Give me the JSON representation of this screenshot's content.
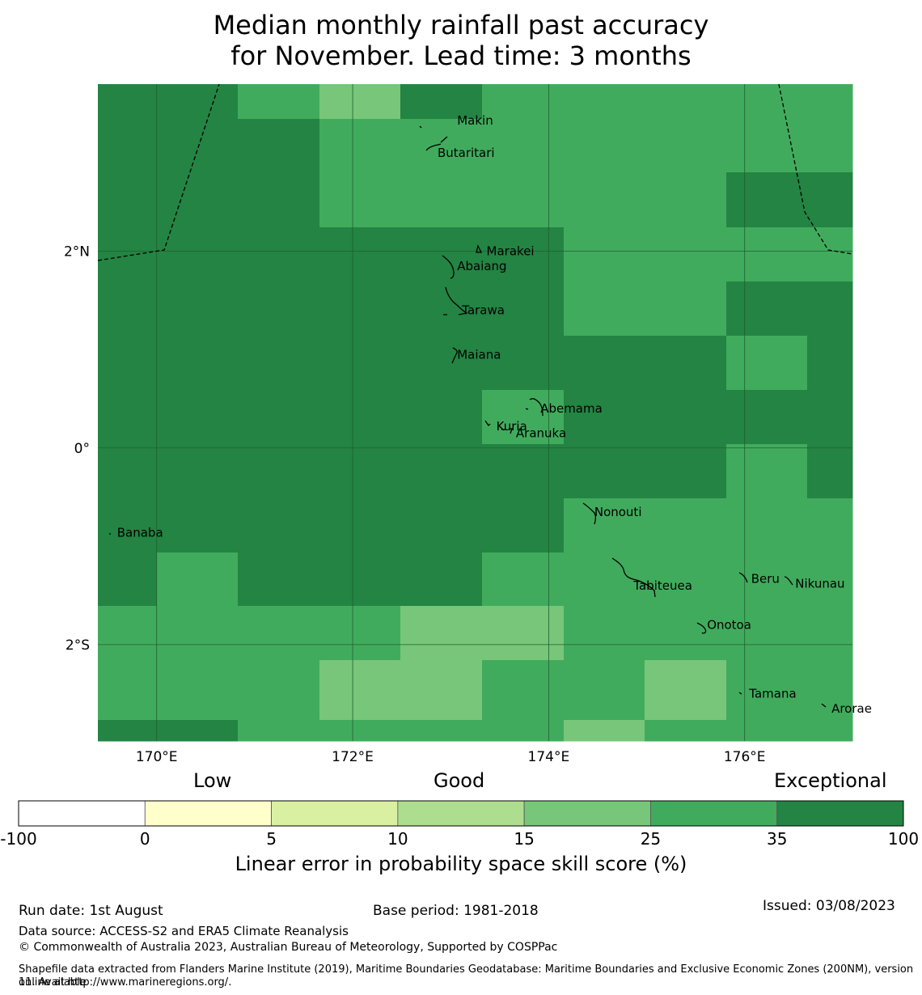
{
  "title_line1": "Median monthly rainfall past accuracy",
  "title_line2": "for November. Lead time: 3 months",
  "map": {
    "lon_range": [
      169.4,
      177.1
    ],
    "lat_range": [
      -2.98,
      3.7
    ],
    "lon_ticks": [
      {
        "value": 170,
        "label": "170°E"
      },
      {
        "value": 172,
        "label": "172°E"
      },
      {
        "value": 174,
        "label": "174°E"
      },
      {
        "value": 176,
        "label": "176°E"
      }
    ],
    "lat_ticks": [
      {
        "value": 2,
        "label": "2°N"
      },
      {
        "value": 0,
        "label": "0°"
      },
      {
        "value": -2,
        "label": "2°S"
      }
    ],
    "grid_lon_edges": [
      169.4,
      170.0,
      170.83,
      171.66,
      172.49,
      173.32,
      174.15,
      174.98,
      175.81,
      176.64,
      177.1
    ],
    "grid_lat_edges": [
      3.7,
      3.35,
      2.8,
      2.24,
      1.69,
      1.14,
      0.59,
      0.04,
      -0.51,
      -1.06,
      -1.61,
      -2.16,
      -2.77,
      -2.98
    ],
    "level_colors": [
      "#ffffff",
      "#ffffcc",
      "#d9f0a3",
      "#addd8e",
      "#78c679",
      "#41ab5d",
      "#238443"
    ],
    "grid_levels": [
      [
        6,
        6,
        5,
        4,
        6,
        5,
        5,
        5,
        5,
        5
      ],
      [
        6,
        6,
        6,
        5,
        5,
        5,
        5,
        5,
        5,
        5
      ],
      [
        6,
        6,
        6,
        5,
        5,
        5,
        5,
        5,
        6,
        6
      ],
      [
        6,
        6,
        6,
        6,
        6,
        6,
        5,
        5,
        5,
        5
      ],
      [
        6,
        6,
        6,
        6,
        6,
        6,
        5,
        5,
        6,
        6
      ],
      [
        6,
        6,
        6,
        6,
        6,
        6,
        6,
        6,
        5,
        6
      ],
      [
        6,
        6,
        6,
        6,
        6,
        5,
        6,
        6,
        6,
        6
      ],
      [
        6,
        6,
        6,
        6,
        6,
        6,
        6,
        6,
        5,
        6
      ],
      [
        6,
        6,
        6,
        6,
        6,
        6,
        5,
        5,
        5,
        5
      ],
      [
        6,
        5,
        6,
        6,
        6,
        5,
        5,
        5,
        5,
        5
      ],
      [
        5,
        5,
        5,
        5,
        4,
        4,
        5,
        5,
        5,
        5
      ],
      [
        5,
        5,
        5,
        4,
        4,
        5,
        5,
        4,
        5,
        5
      ],
      [
        6,
        6,
        5,
        5,
        5,
        5,
        4,
        5,
        5,
        5
      ]
    ],
    "islands": [
      {
        "name": "Makin",
        "lon": 173.0,
        "lat": 3.33
      },
      {
        "name": "Butaritari",
        "lon": 172.8,
        "lat": 3.0
      },
      {
        "name": "Marakei",
        "lon": 173.3,
        "lat": 2.0
      },
      {
        "name": "Abaiang",
        "lon": 173.0,
        "lat": 1.85
      },
      {
        "name": "Tarawa",
        "lon": 173.05,
        "lat": 1.4
      },
      {
        "name": "Maiana",
        "lon": 173.0,
        "lat": 0.95
      },
      {
        "name": "Abemama",
        "lon": 173.85,
        "lat": 0.4
      },
      {
        "name": "Kuria",
        "lon": 173.4,
        "lat": 0.22
      },
      {
        "name": "Aranuka",
        "lon": 173.6,
        "lat": 0.15
      },
      {
        "name": "Nonouti",
        "lon": 174.4,
        "lat": -0.65
      },
      {
        "name": "Banaba",
        "lon": 169.53,
        "lat": -0.86
      },
      {
        "name": "Beru",
        "lon": 176.0,
        "lat": -1.33
      },
      {
        "name": "Tabiteuea",
        "lon": 174.8,
        "lat": -1.4
      },
      {
        "name": "Nikunau",
        "lon": 176.45,
        "lat": -1.38
      },
      {
        "name": "Onotoa",
        "lon": 175.55,
        "lat": -1.8
      },
      {
        "name": "Tamana",
        "lon": 175.98,
        "lat": -2.5
      },
      {
        "name": "Arorae",
        "lon": 176.82,
        "lat": -2.65
      }
    ]
  },
  "colorbar": {
    "categories": {
      "low": "Low",
      "good": "Good",
      "exceptional": "Exceptional"
    },
    "ticks": [
      "-100",
      "0",
      "5",
      "10",
      "15",
      "25",
      "35",
      "100"
    ],
    "colors": [
      "#ffffff",
      "#ffffcc",
      "#d9f0a3",
      "#addd8e",
      "#78c679",
      "#41ab5d",
      "#238443"
    ],
    "label": "Linear error in probability space skill score (%)"
  },
  "footer": {
    "run_date": "Run date: 1st August",
    "base_period": "Base period: 1981-2018",
    "issued": "Issued: 03/08/2023",
    "data_source": "Data source: ACCESS-S2 and ERA5 Climate Reanalysis",
    "copyright": "© Commonwealth of Australia 2023, Australian Bureau of Meteorology, Supported by COSPPac",
    "shapefile_line1": "Shapefile data extracted from Flanders Marine Institute (2019), Maritime Boundaries Geodatabase: Maritime Boundaries and Exclusive Economic Zones (200NM), version 11. Available",
    "shapefile_line2": "online at http://www.marineregions.org/."
  }
}
